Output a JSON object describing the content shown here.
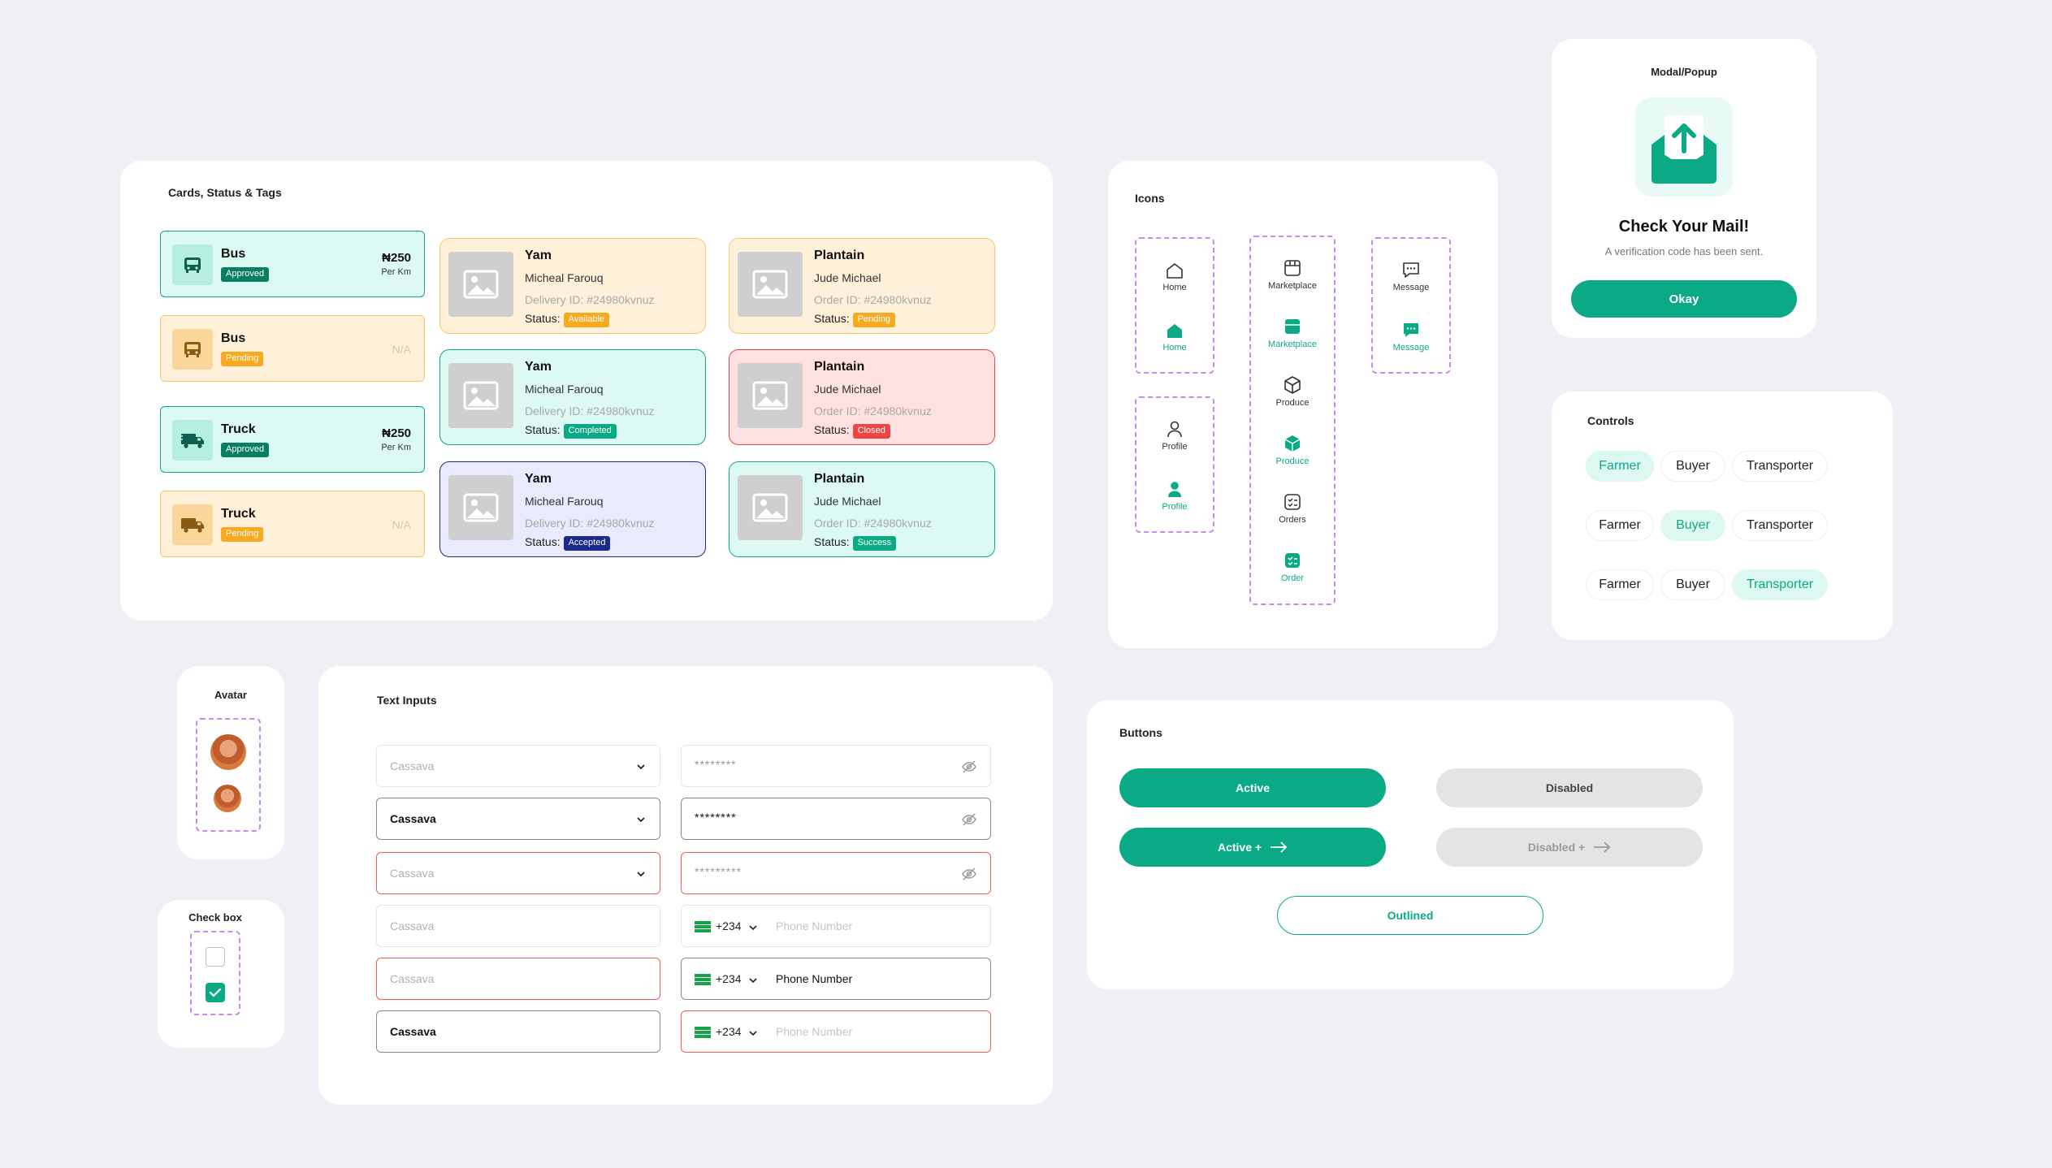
{
  "cards_section": {
    "title": "Cards, Status & Tags",
    "vehicle_cards": [
      {
        "name": "Bus",
        "status": "Approved",
        "price": "₦250",
        "unit": "Per Km",
        "na": ""
      },
      {
        "name": "Bus",
        "status": "Pending",
        "price": "",
        "unit": "",
        "na": "N/A"
      },
      {
        "name": "Truck",
        "status": "Approved",
        "price": "₦250",
        "unit": "Per Km",
        "na": ""
      },
      {
        "name": "Truck",
        "status": "Pending",
        "price": "",
        "unit": "",
        "na": "N/A"
      }
    ],
    "product_cards": [
      {
        "name": "Yam",
        "person": "Micheal Farouq",
        "id": "Delivery ID: #24980kvnuz",
        "status_label": "Status:",
        "status": "Available"
      },
      {
        "name": "Plantain",
        "person": "Jude Michael",
        "id": "Order ID: #24980kvnuz",
        "status_label": "Status:",
        "status": "Pending"
      },
      {
        "name": "Yam",
        "person": "Micheal Farouq",
        "id": "Delivery ID: #24980kvnuz",
        "status_label": "Status:",
        "status": "Completed"
      },
      {
        "name": "Plantain",
        "person": "Jude Michael",
        "id": "Order ID: #24980kvnuz",
        "status_label": "Status:",
        "status": "Closed"
      },
      {
        "name": "Yam",
        "person": "Micheal Farouq",
        "id": "Delivery ID: #24980kvnuz",
        "status_label": "Status:",
        "status": "Accepted"
      },
      {
        "name": "Plantain",
        "person": "Jude Michael",
        "id": "Order ID: #24980kvnuz",
        "status_label": "Status:",
        "status": "Success"
      }
    ]
  },
  "icons_section": {
    "title": "Icons",
    "home": [
      "Home",
      "Home"
    ],
    "profile": [
      "Profile",
      "Profile"
    ],
    "middle": [
      "Marketplace",
      "Marketplace",
      "Produce",
      "Produce",
      "Orders",
      "Order"
    ],
    "message": [
      "Message",
      "Message"
    ]
  },
  "modal": {
    "title": "Modal/Popup",
    "heading": "Check Your Mail!",
    "text": "A verification code has been sent.",
    "button": "Okay"
  },
  "controls": {
    "title": "Controls",
    "rows": [
      {
        "options": [
          "Farmer",
          "Buyer",
          "Transporter"
        ],
        "selected": "Farmer"
      },
      {
        "options": [
          "Farmer",
          "Buyer",
          "Transporter"
        ],
        "selected": "Buyer"
      },
      {
        "options": [
          "Farmer",
          "Buyer",
          "Transporter"
        ],
        "selected": "Transporter"
      }
    ]
  },
  "avatar": {
    "title": "Avatar"
  },
  "checkbox": {
    "title": "Check box"
  },
  "text_inputs": {
    "title": "Text Inputs",
    "selects": [
      "Cassava",
      "Cassava",
      "Cassava"
    ],
    "passwords": [
      "********",
      "********",
      "*********"
    ],
    "plain": [
      "Cassava",
      "Cassava",
      "Cassava"
    ],
    "phones": [
      {
        "code": "+234",
        "number": "Phone Number"
      },
      {
        "code": "+234",
        "number": "Phone Number"
      },
      {
        "code": "+234",
        "number": "Phone Number"
      }
    ]
  },
  "buttons": {
    "title": "Buttons",
    "active": "Active",
    "disabled": "Disabled",
    "active_plus": "Active +",
    "disabled_plus": "Disabled +",
    "outlined": "Outlined"
  },
  "colors": {
    "primary": "#0BAA86",
    "pending": "#F8A91F",
    "closed": "#EF4444",
    "accepted": "#1E2A8A",
    "dash": "#C48BE8"
  }
}
